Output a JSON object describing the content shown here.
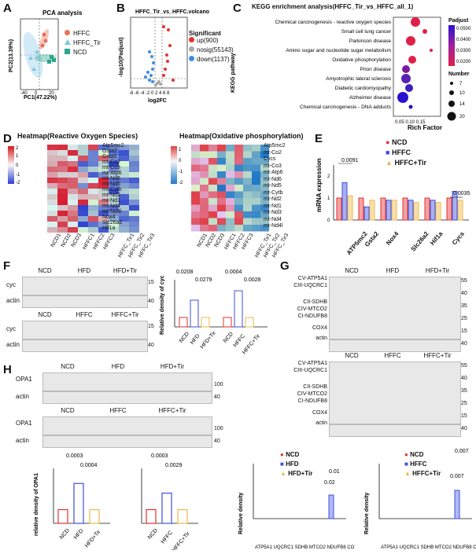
{
  "panel_labels": {
    "A": "A",
    "B": "B",
    "C": "C",
    "D": "D",
    "E": "E",
    "F": "F",
    "G": "G",
    "H": "H"
  },
  "panelA": {
    "title": "PCA analysis",
    "xlabel": "PC1(47.22%)",
    "ylabel": "PC2(13.39%)",
    "legend": [
      "HFFC",
      "HFFC_Tir",
      "NCD"
    ],
    "colors": {
      "HFFC": "#e8725c",
      "HFFC_Tir": "#7ec6e6",
      "NCD": "#2aa58e"
    }
  },
  "panelB": {
    "title": "HFFC_Tir_vs_HFFC.volcano",
    "xlabel": "log2FC",
    "ylabel": "-log10(Padjust)",
    "legend_title": "Significant",
    "legend": [
      "up(900)",
      "nosig(55143)",
      "down(1137)"
    ],
    "colors": {
      "up": "#e53030",
      "nosig": "#aaaaaa",
      "down": "#3d8de0"
    }
  },
  "panelC": {
    "title": "KEGG enrichment analysis(HFFC_Tir_vs_HFFC_all_1)",
    "ylabel": "KEGG pathway",
    "xlabel": "Rich Factor",
    "padjust_title": "Padjust",
    "number_title": "Number",
    "padjust_ticks": [
      "0.0200",
      "0.0300",
      "0.0400",
      "0.0500"
    ],
    "number_ticks": [
      "7",
      "10",
      "14",
      "20"
    ]
  },
  "panelD": {
    "title_left": "Heatmap(Reactive Oxygen Species)",
    "title_right": "Heatmap(Oxidative phosphorylation)",
    "left_rows": [
      "Atp5mc2",
      "Gsta2",
      "Gsta1",
      "mt-Co2",
      "mt-Co3",
      "mt-Atp6",
      "mt-Nd6",
      "mt-Nd5",
      "mt-Cytb",
      "mt-Nd2",
      "mt-Nd1",
      "mt-Nd4",
      "mt-Nd4l",
      "Nox4",
      "Slc26a2",
      "Hif1a"
    ],
    "right_rows": [
      "Atp5mc2",
      "mt-Co2",
      "Cycs",
      "mt-Co3",
      "mt-Atp6",
      "mt-Nd6",
      "mt-Nd5",
      "mt-Cytb",
      "mt-Nd2",
      "mt-Nd1",
      "mt-Nd3",
      "mt-Nd4",
      "mt-Nd4l"
    ],
    "cols": [
      "NCD1",
      "NCD2",
      "NCD3",
      "HFFC1",
      "HFFC2",
      "HFFC3",
      "HFFC_Tir1",
      "HFFC_Tir2",
      "HFFC_Tir3"
    ],
    "left_scale": [
      "2",
      "1",
      "0",
      "-1",
      "-2"
    ],
    "right_scale": [
      "1",
      "0",
      "-1",
      "-2"
    ]
  },
  "panelE": {
    "ylabel": "mRNA expression",
    "legend": [
      "NCD",
      "HFFC",
      "HFFC+Tir"
    ],
    "colors": {
      "NCD": "#e53030",
      "HFFC": "#3d4fe0",
      "HFFC+Tir": "#f0b84a"
    },
    "pvalues": [
      "0.0091",
      "0.0035"
    ]
  },
  "panelF": {
    "top_lanes": [
      "NCD",
      "HFD",
      "HFD+Tir"
    ],
    "bottom_lanes": [
      "NCD",
      "HFFC",
      "HFFC+Tir"
    ],
    "rows": [
      "cyc",
      "actin"
    ],
    "mw": [
      "15",
      "40"
    ],
    "ylabel": "Relative density of cyc",
    "pvalues": [
      "0.0208",
      "0.0279",
      "0.0004",
      "0.0028"
    ],
    "groups1": [
      "NCD",
      "HFD",
      "HFD+Tir"
    ],
    "groups2": [
      "NCD",
      "HFFC",
      "HFFC+Tir"
    ]
  },
  "panelG": {
    "top_lanes": [
      "NCD",
      "HFD",
      "HFD+Tir"
    ],
    "bottom_lanes": [
      "NCD",
      "HFFC",
      "HFFC+Tir"
    ],
    "labels_left": [
      "CV-ATP5A1",
      "CIII-UQCRC1",
      "CII-SDHB",
      "CIV-MTCO2",
      "CI-NDUFB8",
      "COX4",
      "actin"
    ],
    "mw": [
      "55",
      "40",
      "35",
      "25",
      "15",
      "40"
    ],
    "ylabel": "Relative density",
    "legend1": [
      "NCD",
      "HFD",
      "HFD+Tir"
    ],
    "legend2": [
      "NCD",
      "HFFC",
      "HFFC+Tir"
    ],
    "pvalues1": [
      "0.01",
      "0.02"
    ],
    "pvalues2": [
      "0.007",
      "0.007"
    ]
  },
  "panelH": {
    "top_lanes": [
      "NCD",
      "HFD",
      "HFD+Tir"
    ],
    "bottom_lanes": [
      "NCD",
      "HFFC",
      "HFFC+Tir"
    ],
    "rows": [
      "OPA1",
      "actin"
    ],
    "mw": [
      "100",
      "40"
    ],
    "ylabel": "relative density of OPA1",
    "pvalues1": [
      "0.0003",
      "0.0004"
    ],
    "pvalues2": [
      "0.0003",
      "0.0029"
    ]
  },
  "chart_data": [
    {
      "type": "scatter",
      "title": "PCA analysis",
      "xlabel": "PC1(47.22%)",
      "ylabel": "PC2(13.39%)",
      "series": [
        {
          "name": "HFFC",
          "x": [
            -20,
            -18,
            -15
          ],
          "y": [
            25,
            30,
            20
          ]
        },
        {
          "name": "HFFC_Tir",
          "x": [
            -40,
            -25,
            10
          ],
          "y": [
            -10,
            -5,
            -20
          ]
        },
        {
          "name": "NCD",
          "x": [
            20,
            22,
            25
          ],
          "y": [
            -5,
            -8,
            -3
          ]
        }
      ]
    },
    {
      "type": "bar",
      "title": "",
      "ylabel": "mRNA expression",
      "categories": [
        "ATP5mc2",
        "Gsta2",
        "Nox4",
        "Slc26a2",
        "Hif1a",
        "Cycs"
      ],
      "ylim": [
        0,
        2.5
      ],
      "series": [
        {
          "name": "NCD",
          "values": [
            1.0,
            1.0,
            1.0,
            1.0,
            1.0,
            1.0
          ]
        },
        {
          "name": "HFFC",
          "values": [
            1.7,
            0.6,
            0.9,
            0.9,
            0.9,
            1.3
          ]
        },
        {
          "name": "HFFC+Tir",
          "values": [
            1.1,
            0.9,
            0.9,
            0.8,
            0.8,
            0.9
          ]
        }
      ]
    },
    {
      "type": "bar",
      "title": "",
      "ylabel": "relative density of OPA1",
      "categories": [
        "NCD",
        "HFD",
        "HFD+Tir"
      ],
      "ylim": [
        0,
        4
      ],
      "values": [
        1.0,
        2.9,
        1.0
      ]
    },
    {
      "type": "bar",
      "title": "",
      "ylabel": "relative density of OPA1",
      "categories": [
        "NCD",
        "HFFC",
        "HFFC+Tir"
      ],
      "ylim": [
        0,
        4
      ],
      "values": [
        1.0,
        2.2,
        1.0
      ]
    }
  ]
}
